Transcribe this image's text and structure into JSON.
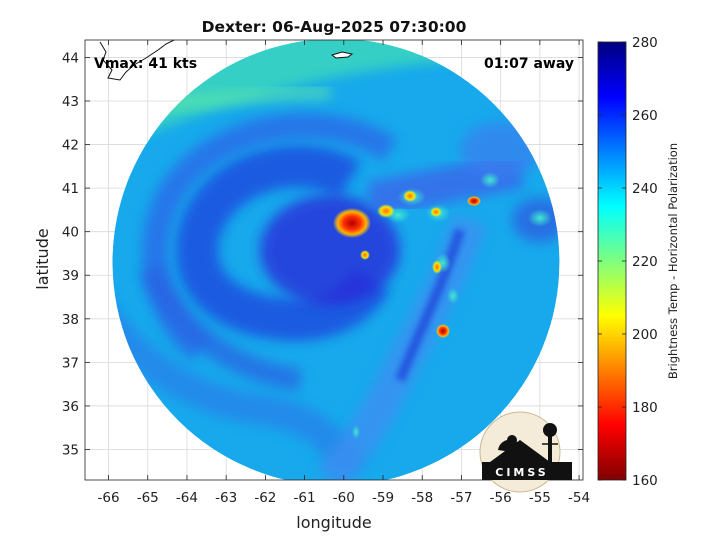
{
  "chart_data": {
    "type": "heatmap",
    "title": "Dexter: 06-Aug-2025 07:30:00",
    "xlabel": "longitude",
    "ylabel": "latitude",
    "xlim": [
      -66.6,
      -53.9
    ],
    "ylim": [
      34.3,
      44.4
    ],
    "x_ticks": [
      "-66",
      "-65",
      "-64",
      "-63",
      "-62",
      "-61",
      "-60",
      "-59",
      "-58",
      "-57",
      "-56",
      "-55",
      "-54"
    ],
    "y_ticks": [
      "35",
      "36",
      "37",
      "38",
      "39",
      "40",
      "41",
      "42",
      "43",
      "44"
    ],
    "grid": true,
    "swath": {
      "center_lon": -60.2,
      "center_lat": 39.3,
      "radius_deg": 5.7
    },
    "storm_center": {
      "lon": -60.0,
      "lat": 40.0
    },
    "annotations": {
      "left": "Vmax: 41 kts",
      "right": "01:07 away"
    },
    "colorbar": {
      "label": "Brightness Temp - Horizontal Polarization",
      "range": [
        160,
        280
      ],
      "ticks": [
        "160",
        "180",
        "200",
        "220",
        "240",
        "260",
        "280"
      ],
      "colormap": "jet"
    },
    "logo_text": "CIMSS",
    "colors": {
      "background_tb": "#17a9ec",
      "band_tb": "#3fdcb8",
      "spiral_tb": "#1f52e0",
      "rainband_tb": "#3e8ff2",
      "core_tb": "#2c28d8"
    }
  }
}
